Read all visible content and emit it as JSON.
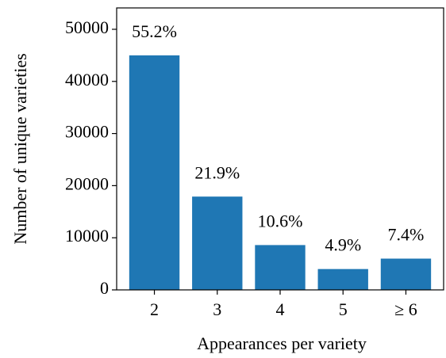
{
  "chart_data": {
    "type": "bar",
    "x_label": "Appearances per variety",
    "y_label": "Number of unique varieties",
    "categories": [
      "2",
      "3",
      "4",
      "5",
      "≥ 6"
    ],
    "values": [
      45000,
      17900,
      8600,
      4000,
      6000
    ],
    "annotations": [
      "55.2%",
      "21.9%",
      "10.6%",
      "4.9%",
      "7.4%"
    ],
    "color": "#1f77b4",
    "ylim": [
      0,
      54100
    ],
    "yticks": [
      0,
      10000,
      20000,
      30000,
      40000,
      50000
    ]
  }
}
